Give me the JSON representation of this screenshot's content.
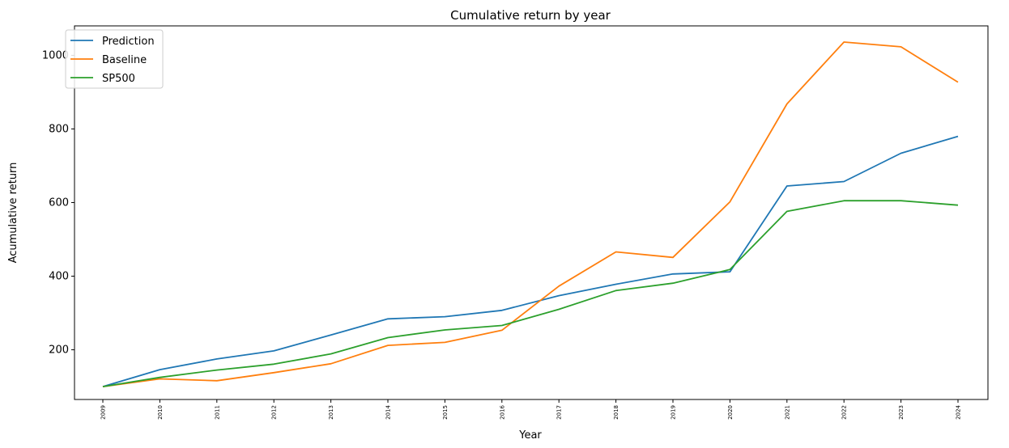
{
  "chart_data": {
    "type": "line",
    "title": "Cumulative return by year",
    "xlabel": "Year",
    "ylabel": "Acumulative return",
    "categories": [
      "2009",
      "2010",
      "2011",
      "2012",
      "2013",
      "2014",
      "2015",
      "2016",
      "2017",
      "2018",
      "2019",
      "2020",
      "2021",
      "2022",
      "2023",
      "2024"
    ],
    "yticks": [
      200,
      400,
      600,
      800,
      1000
    ],
    "ylim": [
      65,
      1080
    ],
    "grid": false,
    "legend_position": "upper-left",
    "series": [
      {
        "name": "Prediction",
        "color": "#1f77b4",
        "values": [
          100,
          146,
          175,
          197,
          240,
          284,
          290,
          307,
          347,
          378,
          406,
          412,
          645,
          657,
          734,
          780
        ]
      },
      {
        "name": "Baseline",
        "color": "#ff7f0e",
        "values": [
          100,
          121,
          116,
          138,
          162,
          212,
          220,
          253,
          373,
          466,
          451,
          602,
          868,
          1036,
          1023,
          927
        ]
      },
      {
        "name": "SP500",
        "color": "#2ca02c",
        "values": [
          100,
          125,
          145,
          161,
          189,
          233,
          254,
          266,
          310,
          361,
          381,
          418,
          576,
          605,
          605,
          593
        ]
      }
    ]
  }
}
